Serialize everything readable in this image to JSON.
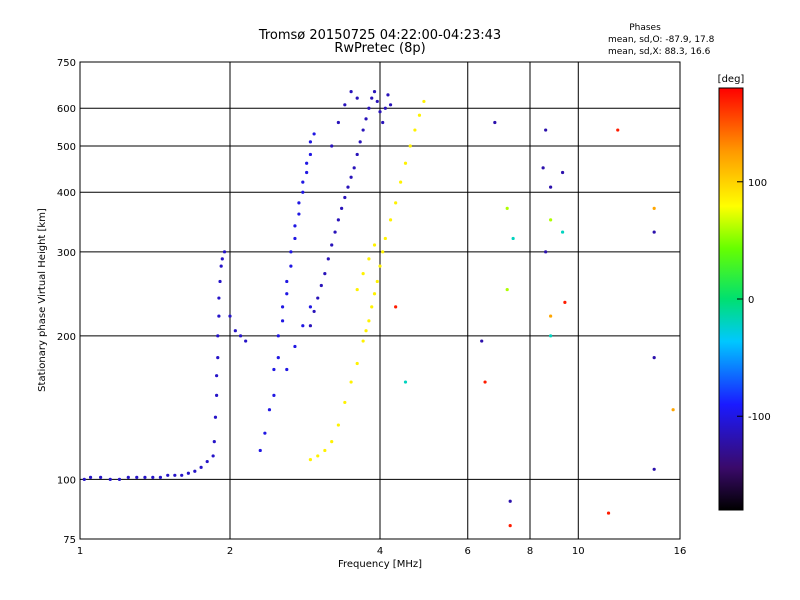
{
  "title": "Tromsø 20150725 04:22:00-04:23:43",
  "subtitle": "RwPretec (8p)",
  "phases_box": {
    "heading": "Phases",
    "line_o": "mean, sd,O: -87.9, 17.8",
    "line_x": "mean, sd,X:  88.3, 16.6"
  },
  "colorbar": {
    "unit_label": "[deg]",
    "range": [
      -180,
      180
    ],
    "ticks": [
      {
        "value": 100,
        "label": "100"
      },
      {
        "value": 0,
        "label": "0"
      },
      {
        "value": -100,
        "label": "-100"
      }
    ]
  },
  "chart_data": {
    "type": "scatter",
    "xlabel": "Frequency [MHz]",
    "ylabel": "Stationary phase Virtual Height [km]",
    "xscale": "log",
    "yscale": "log",
    "xlim": [
      1,
      16
    ],
    "ylim": [
      75,
      750
    ],
    "grid": true,
    "x_ticks": [
      {
        "value": 1,
        "label": "1"
      },
      {
        "value": 2,
        "label": "2"
      },
      {
        "value": 4,
        "label": "4"
      },
      {
        "value": 6,
        "label": "6"
      },
      {
        "value": 8,
        "label": "8"
      },
      {
        "value": 10,
        "label": "10"
      },
      {
        "value": 16,
        "label": "16"
      }
    ],
    "y_ticks": [
      {
        "value": 75,
        "label": "75"
      },
      {
        "value": 100,
        "label": "100"
      },
      {
        "value": 200,
        "label": "200"
      },
      {
        "value": 300,
        "label": "300"
      },
      {
        "value": 400,
        "label": "400"
      },
      {
        "value": 500,
        "label": "500"
      },
      {
        "value": 600,
        "label": "600"
      },
      {
        "value": 750,
        "label": "750"
      }
    ],
    "point_series": [
      {
        "phase_deg": -110,
        "points": [
          [
            1.02,
            100
          ],
          [
            1.05,
            101
          ],
          [
            1.1,
            101
          ],
          [
            1.15,
            100
          ],
          [
            1.2,
            100
          ],
          [
            1.25,
            101
          ],
          [
            1.3,
            101
          ],
          [
            1.35,
            101
          ],
          [
            1.4,
            101
          ],
          [
            1.45,
            101
          ],
          [
            1.5,
            102
          ],
          [
            1.55,
            102
          ],
          [
            1.6,
            102
          ],
          [
            1.65,
            103
          ],
          [
            1.7,
            104
          ],
          [
            1.75,
            106
          ],
          [
            1.8,
            109
          ],
          [
            1.85,
            112
          ],
          [
            1.86,
            120
          ],
          [
            1.87,
            135
          ],
          [
            1.88,
            150
          ],
          [
            1.88,
            165
          ],
          [
            1.89,
            180
          ],
          [
            1.89,
            200
          ],
          [
            1.9,
            220
          ],
          [
            1.9,
            240
          ],
          [
            1.91,
            260
          ],
          [
            1.92,
            280
          ],
          [
            1.93,
            290
          ],
          [
            1.95,
            300
          ],
          [
            2.0,
            220
          ],
          [
            2.05,
            205
          ],
          [
            2.1,
            200
          ],
          [
            2.15,
            195
          ]
        ]
      },
      {
        "phase_deg": -100,
        "points": [
          [
            2.3,
            115
          ],
          [
            2.35,
            125
          ],
          [
            2.4,
            140
          ],
          [
            2.45,
            150
          ],
          [
            2.45,
            170
          ],
          [
            2.5,
            180
          ],
          [
            2.5,
            200
          ],
          [
            2.55,
            215
          ],
          [
            2.55,
            230
          ],
          [
            2.6,
            245
          ],
          [
            2.6,
            260
          ],
          [
            2.65,
            280
          ],
          [
            2.65,
            300
          ],
          [
            2.7,
            320
          ],
          [
            2.7,
            340
          ],
          [
            2.75,
            360
          ],
          [
            2.75,
            380
          ],
          [
            2.8,
            400
          ],
          [
            2.8,
            420
          ],
          [
            2.85,
            440
          ],
          [
            2.85,
            460
          ],
          [
            2.9,
            480
          ],
          [
            2.9,
            510
          ],
          [
            2.95,
            530
          ],
          [
            2.6,
            170
          ],
          [
            2.7,
            190
          ],
          [
            2.8,
            210
          ],
          [
            2.9,
            230
          ]
        ]
      },
      {
        "phase_deg": -115,
        "points": [
          [
            2.9,
            210
          ],
          [
            2.95,
            225
          ],
          [
            3.0,
            240
          ],
          [
            3.05,
            255
          ],
          [
            3.1,
            270
          ],
          [
            3.15,
            290
          ],
          [
            3.2,
            310
          ],
          [
            3.25,
            330
          ],
          [
            3.3,
            350
          ],
          [
            3.35,
            370
          ],
          [
            3.4,
            390
          ],
          [
            3.45,
            410
          ],
          [
            3.5,
            430
          ],
          [
            3.55,
            450
          ],
          [
            3.6,
            480
          ],
          [
            3.65,
            510
          ],
          [
            3.7,
            540
          ],
          [
            3.75,
            570
          ],
          [
            3.8,
            600
          ],
          [
            3.85,
            630
          ],
          [
            3.9,
            650
          ],
          [
            3.95,
            620
          ],
          [
            4.0,
            590
          ],
          [
            4.05,
            560
          ],
          [
            4.1,
            600
          ],
          [
            4.15,
            640
          ],
          [
            4.2,
            610
          ],
          [
            3.2,
            500
          ],
          [
            3.3,
            560
          ],
          [
            3.4,
            610
          ],
          [
            3.5,
            650
          ],
          [
            3.6,
            630
          ]
        ]
      },
      {
        "phase_deg": 85,
        "points": [
          [
            2.9,
            110
          ],
          [
            3.0,
            112
          ],
          [
            3.1,
            115
          ],
          [
            3.2,
            120
          ],
          [
            3.3,
            130
          ],
          [
            3.4,
            145
          ],
          [
            3.5,
            160
          ],
          [
            3.6,
            175
          ],
          [
            3.7,
            195
          ],
          [
            3.75,
            205
          ],
          [
            3.8,
            215
          ],
          [
            3.85,
            230
          ],
          [
            3.9,
            245
          ],
          [
            3.95,
            260
          ],
          [
            4.0,
            280
          ],
          [
            4.05,
            300
          ],
          [
            4.1,
            320
          ],
          [
            4.2,
            350
          ],
          [
            4.3,
            380
          ],
          [
            4.4,
            420
          ],
          [
            4.5,
            460
          ],
          [
            4.6,
            500
          ],
          [
            4.7,
            540
          ],
          [
            4.8,
            580
          ],
          [
            4.9,
            620
          ],
          [
            3.6,
            250
          ],
          [
            3.7,
            270
          ],
          [
            3.8,
            290
          ],
          [
            3.9,
            310
          ]
        ]
      },
      {
        "phase_deg": 60,
        "points": [
          [
            7.2,
            370
          ],
          [
            8.8,
            350
          ],
          [
            7.2,
            250
          ]
        ]
      },
      {
        "phase_deg": 120,
        "points": [
          [
            14.2,
            370
          ],
          [
            8.8,
            220
          ],
          [
            15.5,
            140
          ]
        ]
      },
      {
        "phase_deg": -120,
        "points": [
          [
            8.6,
            540
          ],
          [
            8.5,
            450
          ],
          [
            9.3,
            440
          ],
          [
            6.8,
            560
          ],
          [
            14.2,
            330
          ],
          [
            14.2,
            180
          ],
          [
            14.2,
            105
          ],
          [
            8.6,
            300
          ],
          [
            6.4,
            195
          ],
          [
            7.3,
            90
          ],
          [
            8.8,
            410
          ]
        ]
      },
      {
        "phase_deg": 170,
        "points": [
          [
            12.0,
            540
          ],
          [
            7.3,
            80
          ],
          [
            9.4,
            235
          ],
          [
            4.3,
            230
          ],
          [
            11.5,
            85
          ],
          [
            6.5,
            160
          ]
        ]
      },
      {
        "phase_deg": -20,
        "points": [
          [
            8.8,
            200
          ],
          [
            7.4,
            320
          ],
          [
            9.3,
            330
          ],
          [
            4.5,
            160
          ]
        ]
      }
    ]
  }
}
